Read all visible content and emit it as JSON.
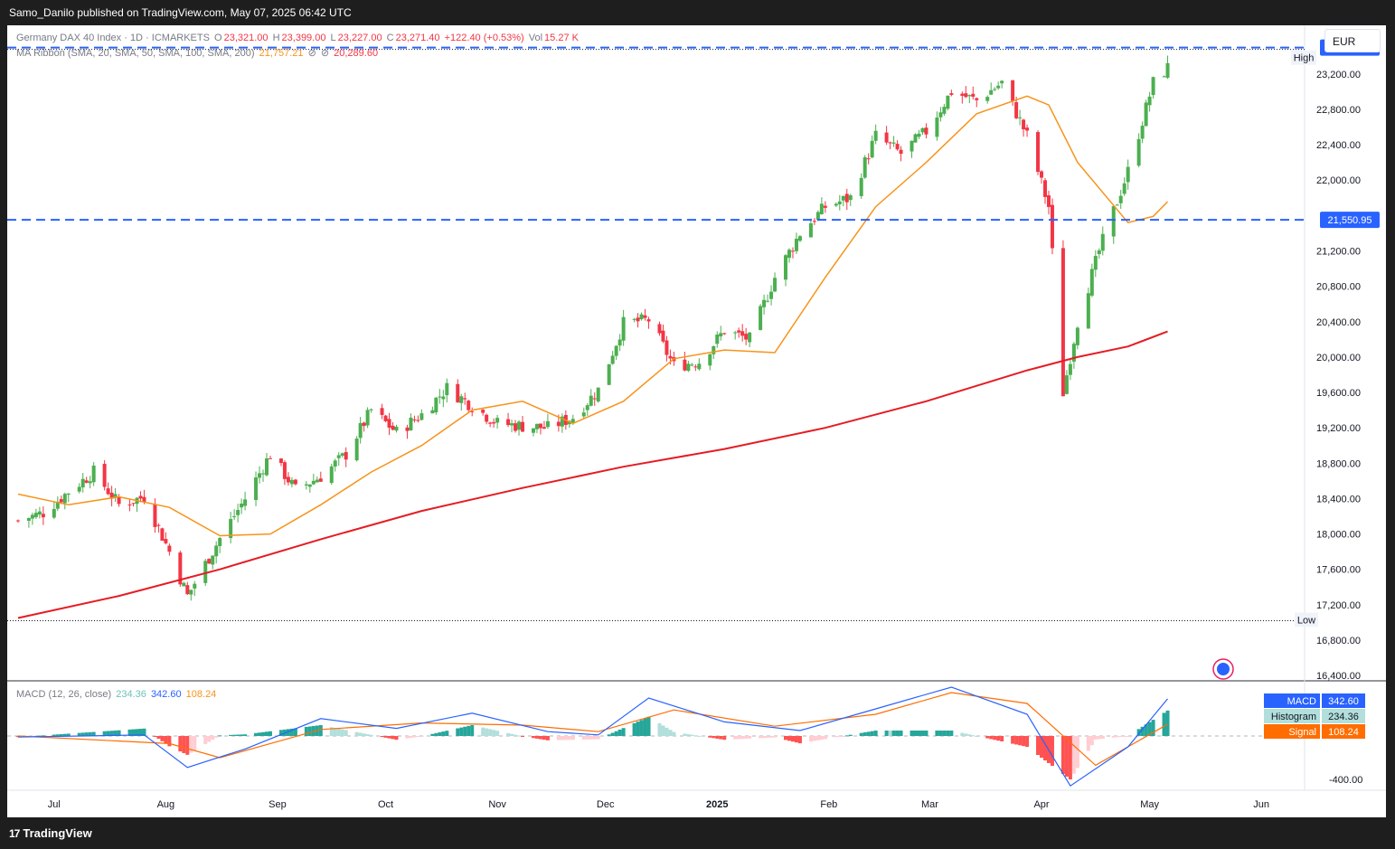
{
  "header": {
    "publisher": "Samo_Danilo published on TradingView.com, May 07, 2025 06:42 UTC"
  },
  "legend": {
    "symbol": "Germany DAX 40 Index · 1D · ICMARKETS",
    "o_label": "O",
    "o": "23,321.00",
    "h_label": "H",
    "h": "23,399.00",
    "l_label": "L",
    "l": "23,227.00",
    "c_label": "C",
    "c": "23,271.40",
    "change": "+122.40 (+0.53%)",
    "vol_label": "Vol",
    "vol": "15.27 K",
    "ma_label": "MA Ribbon (SMA, 20, SMA, 50, SMA, 100, SMA, 200)",
    "ma1": "21,757.21",
    "ma_sep1": "⊘",
    "ma2": "⊘",
    "ma3": "20,289.60",
    "macd_label": "MACD (12, 26, close)",
    "macd_hist": "234.36",
    "macd_val": "342.60",
    "macd_signal": "108.24"
  },
  "currency": "EUR",
  "footer": {
    "logo": "TradingView",
    "logo_mark": "17"
  },
  "colors": {
    "up": "#4caf50",
    "down": "#f23645",
    "sma20": "#f7931a",
    "sma200": "#e51c23",
    "level": "#2962ff",
    "macd": "#2962ff",
    "signal": "#ff6d00"
  },
  "chart_data": {
    "type": "candlestick",
    "instrument": "Germany DAX 40 Index",
    "timeframe": "1D",
    "currency": "EUR",
    "y_ticks": [
      "23,200.00",
      "22,800.00",
      "22,400.00",
      "22,000.00",
      "21,200.00",
      "20,800.00",
      "20,400.00",
      "20,000.00",
      "19,600.00",
      "19,200.00",
      "18,800.00",
      "18,400.00",
      "18,000.00",
      "17,600.00",
      "17,200.00",
      "16,800.00",
      "16,400.00"
    ],
    "y_tick_values": [
      23200,
      22800,
      22400,
      22000,
      21200,
      20800,
      20400,
      20000,
      19600,
      19200,
      18800,
      18400,
      18000,
      17600,
      17200,
      16800,
      16400
    ],
    "ylim": [
      16350,
      23750
    ],
    "x_ticks": [
      "Jul",
      "Aug",
      "Sep",
      "Oct",
      "Nov",
      "Dec",
      "2025",
      "Feb",
      "Mar",
      "Apr",
      "May",
      "Jun"
    ],
    "price_labels": [
      {
        "text": "23,497.70",
        "value": 23497.7,
        "tag": "High"
      },
      {
        "text": "21,550.95",
        "value": 21550.95
      }
    ],
    "low_tag": {
      "text": "Low",
      "value": 17020
    },
    "close_points": [
      [
        "2024-06-21",
        18150
      ],
      [
        "2024-06-28",
        18240
      ],
      [
        "2024-07-05",
        18480
      ],
      [
        "2024-07-12",
        18700
      ],
      [
        "2024-07-19",
        18330
      ],
      [
        "2024-07-26",
        18420
      ],
      [
        "2024-08-02",
        17800
      ],
      [
        "2024-08-07",
        17300
      ],
      [
        "2024-08-16",
        17950
      ],
      [
        "2024-08-23",
        18400
      ],
      [
        "2024-08-30",
        18900
      ],
      [
        "2024-09-06",
        18500
      ],
      [
        "2024-09-13",
        18650
      ],
      [
        "2024-09-20",
        18900
      ],
      [
        "2024-09-27",
        19400
      ],
      [
        "2024-10-04",
        19150
      ],
      [
        "2024-10-11",
        19350
      ],
      [
        "2024-10-18",
        19650
      ],
      [
        "2024-10-25",
        19450
      ],
      [
        "2024-11-01",
        19250
      ],
      [
        "2024-11-08",
        19220
      ],
      [
        "2024-11-15",
        19200
      ],
      [
        "2024-11-22",
        19320
      ],
      [
        "2024-11-29",
        19630
      ],
      [
        "2024-12-06",
        20380
      ],
      [
        "2024-12-13",
        20420
      ],
      [
        "2024-12-20",
        19900
      ],
      [
        "2024-12-27",
        19950
      ],
      [
        "2025-01-03",
        20300
      ],
      [
        "2025-01-10",
        20200
      ],
      [
        "2025-01-17",
        20900
      ],
      [
        "2025-01-24",
        21400
      ],
      [
        "2025-01-31",
        21700
      ],
      [
        "2025-02-07",
        21800
      ],
      [
        "2025-02-14",
        22500
      ],
      [
        "2025-02-21",
        22300
      ],
      [
        "2025-02-28",
        22550
      ],
      [
        "2025-03-07",
        23000
      ],
      [
        "2025-03-14",
        22900
      ],
      [
        "2025-03-21",
        23100
      ],
      [
        "2025-03-28",
        22500
      ],
      [
        "2025-04-03",
        21700
      ],
      [
        "2025-04-07",
        19600
      ],
      [
        "2025-04-11",
        20400
      ],
      [
        "2025-04-17",
        21200
      ],
      [
        "2025-04-25",
        22100
      ],
      [
        "2025-05-02",
        23100
      ],
      [
        "2025-05-06",
        23271.4
      ]
    ],
    "sma20_points": [
      [
        "2024-06-21",
        18450
      ],
      [
        "2024-07-05",
        18330
      ],
      [
        "2024-07-19",
        18420
      ],
      [
        "2024-08-02",
        18300
      ],
      [
        "2024-08-16",
        17980
      ],
      [
        "2024-08-30",
        18000
      ],
      [
        "2024-09-13",
        18330
      ],
      [
        "2024-09-27",
        18700
      ],
      [
        "2024-10-11",
        19000
      ],
      [
        "2024-10-25",
        19400
      ],
      [
        "2024-11-08",
        19500
      ],
      [
        "2024-11-22",
        19250
      ],
      [
        "2024-12-06",
        19500
      ],
      [
        "2024-12-20",
        19980
      ],
      [
        "2025-01-03",
        20080
      ],
      [
        "2025-01-17",
        20050
      ],
      [
        "2025-01-31",
        20900
      ],
      [
        "2025-02-14",
        21700
      ],
      [
        "2025-02-28",
        22200
      ],
      [
        "2025-03-14",
        22750
      ],
      [
        "2025-03-28",
        22950
      ],
      [
        "2025-04-03",
        22850
      ],
      [
        "2025-04-11",
        22200
      ],
      [
        "2025-04-25",
        21520
      ],
      [
        "2025-05-02",
        21590
      ],
      [
        "2025-05-06",
        21757.21
      ]
    ],
    "sma200_points": [
      [
        "2024-06-21",
        17050
      ],
      [
        "2024-07-19",
        17300
      ],
      [
        "2024-08-16",
        17600
      ],
      [
        "2024-09-13",
        17940
      ],
      [
        "2024-10-11",
        18260
      ],
      [
        "2024-11-08",
        18520
      ],
      [
        "2024-12-06",
        18760
      ],
      [
        "2025-01-03",
        18960
      ],
      [
        "2025-01-31",
        19200
      ],
      [
        "2025-02-28",
        19500
      ],
      [
        "2025-03-28",
        19850
      ],
      [
        "2025-04-11",
        20000
      ],
      [
        "2025-04-25",
        20120
      ],
      [
        "2025-05-06",
        20289.6
      ]
    ],
    "macd": {
      "label": "MACD (12, 26, close)",
      "series": [
        {
          "name": "MACD",
          "value": 342.6
        },
        {
          "name": "Histogram",
          "value": 234.36
        },
        {
          "name": "Signal",
          "value": 108.24
        }
      ],
      "y_ticks": [
        "-400.00"
      ],
      "y_tick_values": [
        -400
      ],
      "ylim": [
        -500,
        500
      ],
      "macd_points": [
        [
          "2024-06-21",
          -10
        ],
        [
          "2024-07-26",
          10
        ],
        [
          "2024-08-07",
          -290
        ],
        [
          "2024-08-23",
          -120
        ],
        [
          "2024-09-13",
          160
        ],
        [
          "2024-10-04",
          70
        ],
        [
          "2024-10-25",
          210
        ],
        [
          "2024-11-15",
          40
        ],
        [
          "2024-11-29",
          10
        ],
        [
          "2024-12-13",
          350
        ],
        [
          "2025-01-03",
          130
        ],
        [
          "2025-01-24",
          50
        ],
        [
          "2025-02-14",
          250
        ],
        [
          "2025-03-07",
          450
        ],
        [
          "2025-03-28",
          200
        ],
        [
          "2025-04-09",
          -460
        ],
        [
          "2025-04-25",
          -100
        ],
        [
          "2025-05-06",
          342.6
        ]
      ],
      "signal_points": [
        [
          "2024-06-21",
          0
        ],
        [
          "2024-08-02",
          -70
        ],
        [
          "2024-08-16",
          -200
        ],
        [
          "2024-09-13",
          60
        ],
        [
          "2024-10-11",
          120
        ],
        [
          "2024-11-08",
          100
        ],
        [
          "2024-11-29",
          40
        ],
        [
          "2024-12-20",
          240
        ],
        [
          "2025-01-17",
          90
        ],
        [
          "2025-02-14",
          200
        ],
        [
          "2025-03-07",
          400
        ],
        [
          "2025-03-28",
          300
        ],
        [
          "2025-04-16",
          -270
        ],
        [
          "2025-05-06",
          108.24
        ]
      ]
    }
  }
}
